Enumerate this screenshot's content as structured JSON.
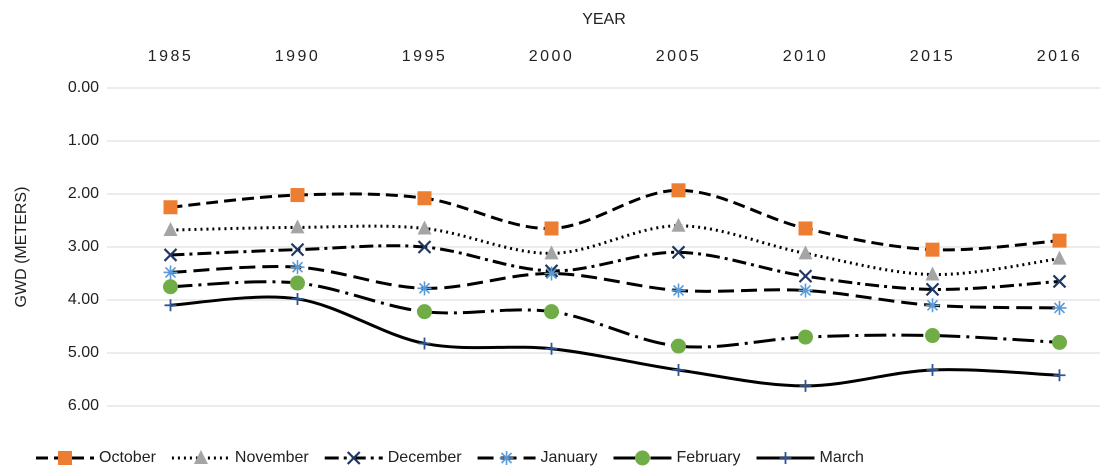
{
  "chart_data": {
    "type": "line",
    "x_title": "YEAR",
    "y_title": "GWD (METERS)",
    "categories": [
      "1985",
      "1990",
      "1995",
      "2000",
      "2005",
      "2010",
      "2015",
      "2016"
    ],
    "ylim": [
      0,
      6
    ],
    "y_inverted": true,
    "grid": true,
    "smooth": true,
    "legend": "bottom",
    "line_color": "#000000",
    "yticks": [
      {
        "value": 0,
        "label": "0.00"
      },
      {
        "value": 1,
        "label": "1.00"
      },
      {
        "value": 2,
        "label": "2.00"
      },
      {
        "value": 3,
        "label": "3.00"
      },
      {
        "value": 4,
        "label": "4.00"
      },
      {
        "value": 5,
        "label": "5.00"
      },
      {
        "value": 6,
        "label": "6.00"
      }
    ],
    "series": [
      {
        "name": "October",
        "color": "#ED7D31",
        "marker": "square",
        "dash": "12 6",
        "values": [
          2.25,
          2.02,
          2.08,
          2.65,
          1.93,
          2.65,
          3.05,
          2.88
        ]
      },
      {
        "name": "November",
        "color": "#A5A5A5",
        "marker": "triangle",
        "dash": "2 4",
        "values": [
          2.68,
          2.63,
          2.65,
          3.12,
          2.6,
          3.12,
          3.52,
          3.22
        ]
      },
      {
        "name": "December",
        "color": "#1F3864",
        "marker": "x",
        "dash": "14 5 3 5",
        "values": [
          3.15,
          3.05,
          3.0,
          3.45,
          3.1,
          3.55,
          3.8,
          3.65
        ]
      },
      {
        "name": "January",
        "color": "#5B9BD5",
        "marker": "asterisk",
        "dash": "16 7",
        "values": [
          3.48,
          3.38,
          3.78,
          3.5,
          3.82,
          3.82,
          4.1,
          4.15
        ]
      },
      {
        "name": "February",
        "color": "#70AD47",
        "marker": "circle",
        "dash": "22 6 3 6",
        "values": [
          3.75,
          3.68,
          4.22,
          4.22,
          4.87,
          4.7,
          4.67,
          4.8
        ]
      },
      {
        "name": "March",
        "color": "#2F5597",
        "marker": "plus",
        "dash": "",
        "values": [
          4.1,
          3.98,
          4.82,
          4.92,
          5.32,
          5.62,
          5.32,
          5.42
        ]
      }
    ]
  }
}
